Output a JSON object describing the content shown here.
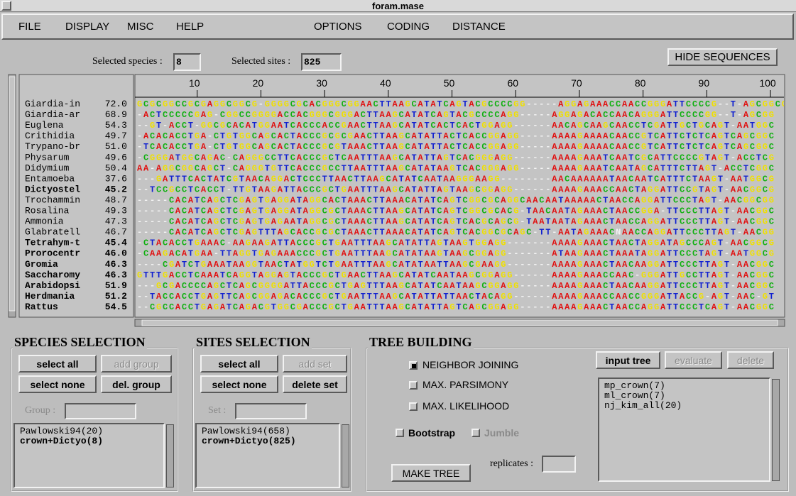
{
  "window": {
    "title": "foram.mase"
  },
  "menu": [
    "FILE",
    "DISPLAY",
    "MISC",
    "HELP",
    "OPTIONS",
    "CODING",
    "DISTANCE"
  ],
  "toolbar": {
    "species_label": "Selected species :",
    "species_value": 8,
    "sites_label": "Selected sites :",
    "sites_value": 825,
    "hide_button": "HIDE SEQUENCES"
  },
  "alignment": {
    "ruler": [
      10,
      20,
      30,
      40,
      50,
      60,
      70,
      80,
      90,
      100
    ],
    "rows": [
      {
        "name": "Giardia-in",
        "score": "72.0",
        "selected": false,
        "sequence": "GCGCGGCCGCGAGGCGGCG-GGGGCGCACGGGCGGAACTTAAGCATATCAGTACGCCCCGG-----AGGAGAAACCAACCGGGATTCCCCG--T-AGCGGCG"
      },
      {
        "name": "Giardia-ar",
        "score": "68.9",
        "selected": false,
        "sequence": "-ACTCCCCCGAG-CGGCCGGGGACCACGGGCGGGACTTAAGCATATCAGTACGCCCCAGG-----AGGAGACACCAACAGGGATTCCCCGG--T-AGCGG"
      },
      {
        "name": "Euglena",
        "score": "54.3",
        "selected": false,
        "sequence": "--GT-ACCT-GGCGCACATGGAATCACCCACCGAACTTAAGCATATCACTCACTGGAGG------AACAGCAAGCAACCTCGATTGCTGCAGT-AATGGC"
      },
      {
        "name": "Crithidia",
        "score": "49.7",
        "selected": false,
        "sequence": "-ACACACCTGA-CTGTGGCAGCACTACCCGCGCGAACTTAAGCATATTACTCACCGGAGG-----AAAAGAAAACAACCGTCATTCTCTCAGTCAGCGGC"
      },
      {
        "name": "Trypano-br",
        "score": "51.0",
        "selected": false,
        "sequence": "-TCACACCTGA-CTGTGGCAGCACTACCCGCGTAAACTTAAGCATATTACTCACCGGAGG-----AAAAGAAAACAACCGTCATTCTCTCAGTCAGCGGC"
      },
      {
        "name": "Physarum",
        "score": "49.6",
        "selected": false,
        "sequence": "-CGGGATGGCAGAC-CAGGGCCTTCACCCGCTCAATTTAAGCATATTAGTCACGGGAGG------AAAAGAAATCAATCGCATTCCCCGTAGT-ACCTCG"
      },
      {
        "name": "Didymium",
        "score": "50.4",
        "selected": false,
        "sequence": "AA-AGGCGGCAGCT-CAGGGTGTTCACCCGCCTTAATTTAAGCATATAAGTCACGGGAGG-----AAAAGAAATCAATAGCATTTCTTAGT-ACCTCGGC"
      },
      {
        "name": "Entamoeba",
        "score": "37.6",
        "selected": false,
        "sequence": "---GATTTCACTATCGTAACAGGACTCCCTTAACTTAAGCATATCAATAAGGGAAGG--------AACAAAAAATAACAATCATTTCTAAGT-AATGGCG"
      },
      {
        "name": "Dictyostel",
        "score": "45.2",
        "selected": true,
        "sequence": "--TCCGCCTCACCT-TTGTAAGATTACCCGCTGAATTTAAGCATATTAGTAAGCGGAGG------AAAAGAAACCAACTAGGATTCCGTAGT-AACGGCG"
      },
      {
        "name": "Trochammin",
        "score": "48.7",
        "selected": false,
        "sequence": "-----CACATCAGCTCGAGTGAGGATAGGCACTAAACTTAAACATATCAGTCGGCGCAGGCAACAATAAAAACTAACCAGGATTCCCTAGT-AACGGCGG"
      },
      {
        "name": "Rosalina",
        "score": "49.3",
        "selected": false,
        "sequence": "-----CACATCAGCTCGAGTGAGGATAGGCGCTAAACTTAAGCATATCAGTCGGCGCACG-TAACAATAGAAACTAACCGGA-TTCCCTTAGT-AACGGC"
      },
      {
        "name": "Ammonia",
        "score": "47.3",
        "selected": false,
        "sequence": "-----CACATCAGCTCGAGTGAGAATAGGCGCTAAACTTAAGCATATCAGTCACGCAGCG-TAATAATAGAAACTAACCAGGATTCCCTTAGT-AACGGC"
      },
      {
        "name": "Glabratell",
        "score": "46.7",
        "selected": false,
        "sequence": "-----CACATCAGCTCGAGTTTAGCACCGCGCTAAACTTAAACATATCAGTCACGGCGCAGC-TT-AATAGAAACNAACCAGGATTCCCTTAGT-AACGG"
      },
      {
        "name": "Tetrahym-t",
        "score": "45.4",
        "selected": true,
        "sequence": "-CTACACCTGAAAC-AAGAAGATTACCCGCTGAATTTAAGCATATTAGTAAGTGGAGG-------AAAAGAAACTAACTAGGATAGCCCAGT-AACGGCG"
      },
      {
        "name": "Prorocentr",
        "score": "46.0",
        "selected": true,
        "sequence": "-CAAGACATGAA-TTAGGTGAGAAACCCGCTGAATTTAAGCATATAAGTAAGCGGAGG-------ATAAGAAACTAAATAGGATTCCCTAGT-AATGGCG"
      },
      {
        "name": "Gromia",
        "score": "46.3",
        "selected": true,
        "sequence": "----CGATCTGAAATAAGGTAACTATGGTCTGAATTTAAGCATATAATTAAGCGAAGG-------AAAAGAAACTAACAAGGATTCCCTTAGT-AACGGC"
      },
      {
        "name": "Saccharomy",
        "score": "46.3",
        "selected": true,
        "sequence": "GTTTGACCTCAAATCAGGTAGGAGTACCCGCTGAACTTAAGCATATCAATAAGCGGAGG------AAAAGAAACCAAC-GGGATTGCCTTAGT-AACGGC"
      },
      {
        "name": "Arabidopsi",
        "score": "51.9",
        "selected": true,
        "sequence": "---GCGACCCCAGCTCAGCGGGGATTACCCGCTGAGTTTAAGCATATCAATAAGCGGAGG-----AAAAGAAACTAACAAGGATTCCCTTAGT-AACGGC"
      },
      {
        "name": "Herdmania",
        "score": "51.2",
        "selected": true,
        "sequence": "--TACCACCTGAGTTCAGCGGAGACACCCGCTGAATTTAAGCATATTATTAACTACAGG------AAAAGAAACCAACCGGGATTACCG-AGT-AAC-GT"
      },
      {
        "name": "Rattus",
        "score": "54.5",
        "selected": true,
        "sequence": "--CGCCACCTGAGATCAGACGTGGCGACCCGCTGAATTTAAGCATATTAGTCAGCGGAGG-----AAAAGAAACTAACCAGGATTCCCTCAGT-AACGGC"
      }
    ]
  },
  "species_selection": {
    "title": "SPECIES SELECTION",
    "buttons": [
      {
        "label": "select all",
        "enabled": true
      },
      {
        "label": "add group",
        "enabled": false
      },
      {
        "label": "select none",
        "enabled": true
      },
      {
        "label": "del. group",
        "enabled": true
      }
    ],
    "field_label": "Group :",
    "list": [
      {
        "text": "Pawlowski94(20)",
        "selected": false
      },
      {
        "text": "crown+Dictyo(8)",
        "selected": true
      }
    ]
  },
  "sites_selection": {
    "title": "SITES SELECTION",
    "buttons": [
      {
        "label": "select all",
        "enabled": true
      },
      {
        "label": "add set",
        "enabled": false
      },
      {
        "label": "select none",
        "enabled": true
      },
      {
        "label": "delete set",
        "enabled": true
      }
    ],
    "field_label": "Set :",
    "list": [
      {
        "text": "Pawlowski94(658)",
        "selected": false
      },
      {
        "text": "crown+Dictyo(825)",
        "selected": true
      }
    ]
  },
  "tree_building": {
    "title": "TREE BUILDING",
    "methods": [
      {
        "label": "NEIGHBOR JOINING",
        "checked": true
      },
      {
        "label": "MAX. PARSIMONY",
        "checked": false
      },
      {
        "label": "MAX. LIKELIHOOD",
        "checked": false
      }
    ],
    "options": [
      {
        "label": "Bootstrap",
        "checked": false,
        "enabled": true
      },
      {
        "label": "Jumble",
        "checked": false,
        "enabled": false
      }
    ],
    "make_tree": "MAKE TREE",
    "replicates_label": "replicates :",
    "tree_buttons": [
      {
        "label": "input tree",
        "enabled": true
      },
      {
        "label": "evaluate",
        "enabled": false
      },
      {
        "label": "delete",
        "enabled": false
      }
    ],
    "trees": [
      "mp_crown(7)",
      "ml_crown(7)",
      "nj_kim_all(20)"
    ]
  }
}
